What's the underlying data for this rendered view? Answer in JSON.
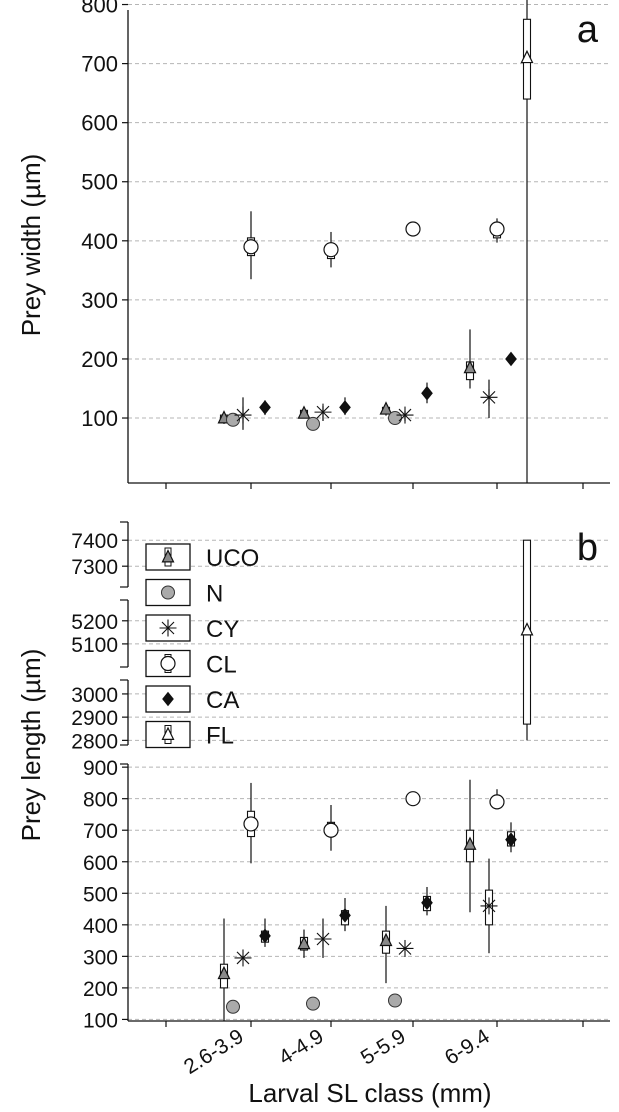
{
  "chart_data": [
    {
      "type": "scatter",
      "panel": "a",
      "ylabel": "Prey width (µm)",
      "y_ticks": [
        100,
        200,
        300,
        400,
        500,
        600,
        700,
        800
      ],
      "ylim": [
        -10,
        820
      ],
      "grid": true,
      "categories": [
        "2.6-3.9",
        "4-4.9",
        "5-5.9",
        "6-9.4"
      ],
      "series": [
        {
          "name": "UCO",
          "marker": "triangle-gray",
          "points": [
            {
              "category": "2.6-3.9",
              "value": 100,
              "q1": 95,
              "q3": 105,
              "min": 90,
              "max": 110
            },
            {
              "category": "4-4.9",
              "value": 108,
              "q1": 102,
              "q3": 113,
              "min": 100,
              "max": 118
            },
            {
              "category": "5-5.9",
              "value": 115,
              "q1": 110,
              "q3": 118,
              "min": 104,
              "max": 125
            },
            {
              "category": "6-9.4",
              "value": 185,
              "q1": 165,
              "q3": 195,
              "min": 150,
              "max": 250
            }
          ]
        },
        {
          "name": "N",
          "marker": "circle-gray",
          "points": [
            {
              "category": "2.6-3.9",
              "value": 97
            },
            {
              "category": "4-4.9",
              "value": 90
            },
            {
              "category": "5-5.9",
              "value": 100
            }
          ]
        },
        {
          "name": "CY",
          "marker": "asterisk",
          "points": [
            {
              "category": "2.6-3.9",
              "value": 105,
              "min": 80,
              "max": 135
            },
            {
              "category": "4-4.9",
              "value": 110,
              "min": 95,
              "max": 120
            },
            {
              "category": "5-5.9",
              "value": 105,
              "min": 95,
              "max": 112
            },
            {
              "category": "6-9.4",
              "value": 135,
              "min": 100,
              "max": 165
            }
          ]
        },
        {
          "name": "CL",
          "marker": "circle-open",
          "points": [
            {
              "category": "2.6-3.9",
              "value": 390,
              "q1": 375,
              "q3": 405,
              "min": 335,
              "max": 450
            },
            {
              "category": "4-4.9",
              "value": 385,
              "q1": 370,
              "q3": 395,
              "min": 355,
              "max": 415
            },
            {
              "category": "5-5.9",
              "value": 420
            },
            {
              "category": "6-9.4",
              "value": 420,
              "q1": 405,
              "q3": 428,
              "min": 397,
              "max": 438
            }
          ]
        },
        {
          "name": "CA",
          "marker": "diamond-black",
          "points": [
            {
              "category": "2.6-3.9",
              "value": 118,
              "min": 105,
              "max": 130
            },
            {
              "category": "4-4.9",
              "value": 118,
              "min": 105,
              "max": 135
            },
            {
              "category": "5-5.9",
              "value": 142,
              "min": 125,
              "max": 160
            },
            {
              "category": "6-9.4",
              "value": 200
            }
          ]
        },
        {
          "name": "FL",
          "marker": "triangle-open",
          "points": [
            {
              "category": "6-9.4",
              "value": 710,
              "q1": 640,
              "q3": 775,
              "min": -10,
              "max": 820
            }
          ]
        }
      ]
    },
    {
      "type": "scatter",
      "panel": "b",
      "ylabel": "Prey length (µm)",
      "axis_segments": [
        {
          "ticks": [
            7300,
            7400
          ],
          "range": [
            7220,
            7470
          ]
        },
        {
          "ticks": [
            5100,
            5200
          ],
          "range": [
            5000,
            5290
          ]
        },
        {
          "ticks": [
            2800,
            2900,
            3000
          ],
          "range": [
            2780,
            3060
          ]
        },
        {
          "ticks": [
            100,
            200,
            300,
            400,
            500,
            600,
            700,
            800,
            900
          ],
          "range": [
            95,
            910
          ]
        }
      ],
      "grid": true,
      "xlabel": "Larval SL class (mm)",
      "categories": [
        "2.6-3.9",
        "4-4.9",
        "5-5.9",
        "6-9.4"
      ],
      "legend": {
        "position": "top-left",
        "entries": [
          "UCO",
          "N",
          "CY",
          "CL",
          "CA",
          "FL"
        ]
      },
      "series": [
        {
          "name": "UCO",
          "marker": "triangle-gray",
          "points": [
            {
              "category": "2.6-3.9",
              "value": 245,
              "q1": 200,
              "q3": 275,
              "min": 95,
              "max": 420
            },
            {
              "category": "4-4.9",
              "value": 340,
              "q1": 320,
              "q3": 360,
              "min": 295,
              "max": 385
            },
            {
              "category": "5-5.9",
              "value": 350,
              "q1": 310,
              "q3": 380,
              "min": 215,
              "max": 460
            },
            {
              "category": "6-9.4",
              "value": 655,
              "q1": 600,
              "q3": 700,
              "min": 440,
              "max": 860
            }
          ]
        },
        {
          "name": "N",
          "marker": "circle-gray",
          "points": [
            {
              "category": "2.6-3.9",
              "value": 140
            },
            {
              "category": "4-4.9",
              "value": 150
            },
            {
              "category": "5-5.9",
              "value": 160
            }
          ]
        },
        {
          "name": "CY",
          "marker": "asterisk",
          "points": [
            {
              "category": "2.6-3.9",
              "value": 295
            },
            {
              "category": "4-4.9",
              "value": 355,
              "min": 295,
              "max": 420
            },
            {
              "category": "5-5.9",
              "value": 325
            },
            {
              "category": "6-9.4",
              "value": 460,
              "q1": 400,
              "q3": 510,
              "min": 310,
              "max": 610
            }
          ]
        },
        {
          "name": "CL",
          "marker": "circle-open",
          "points": [
            {
              "category": "2.6-3.9",
              "value": 720,
              "q1": 680,
              "q3": 760,
              "min": 595,
              "max": 850
            },
            {
              "category": "4-4.9",
              "value": 700,
              "q1": 690,
              "q3": 725,
              "min": 635,
              "max": 780
            },
            {
              "category": "5-5.9",
              "value": 800
            },
            {
              "category": "6-9.4",
              "value": 790,
              "min": 770,
              "max": 830
            }
          ]
        },
        {
          "name": "CA",
          "marker": "diamond-black",
          "points": [
            {
              "category": "2.6-3.9",
              "value": 365,
              "q1": 345,
              "q3": 380,
              "min": 330,
              "max": 420
            },
            {
              "category": "4-4.9",
              "value": 430,
              "q1": 400,
              "q3": 445,
              "min": 380,
              "max": 485
            },
            {
              "category": "5-5.9",
              "value": 470,
              "q1": 445,
              "q3": 490,
              "min": 430,
              "max": 520
            },
            {
              "category": "6-9.4",
              "value": 670,
              "q1": 650,
              "q3": 695,
              "min": 630,
              "max": 725
            }
          ]
        },
        {
          "name": "FL",
          "marker": "triangle-open",
          "points": [
            {
              "category": "6-9.4",
              "value": 5160,
              "q1": 2870,
              "q3": 7400,
              "min": 2800,
              "max": 7400
            }
          ]
        }
      ]
    }
  ]
}
